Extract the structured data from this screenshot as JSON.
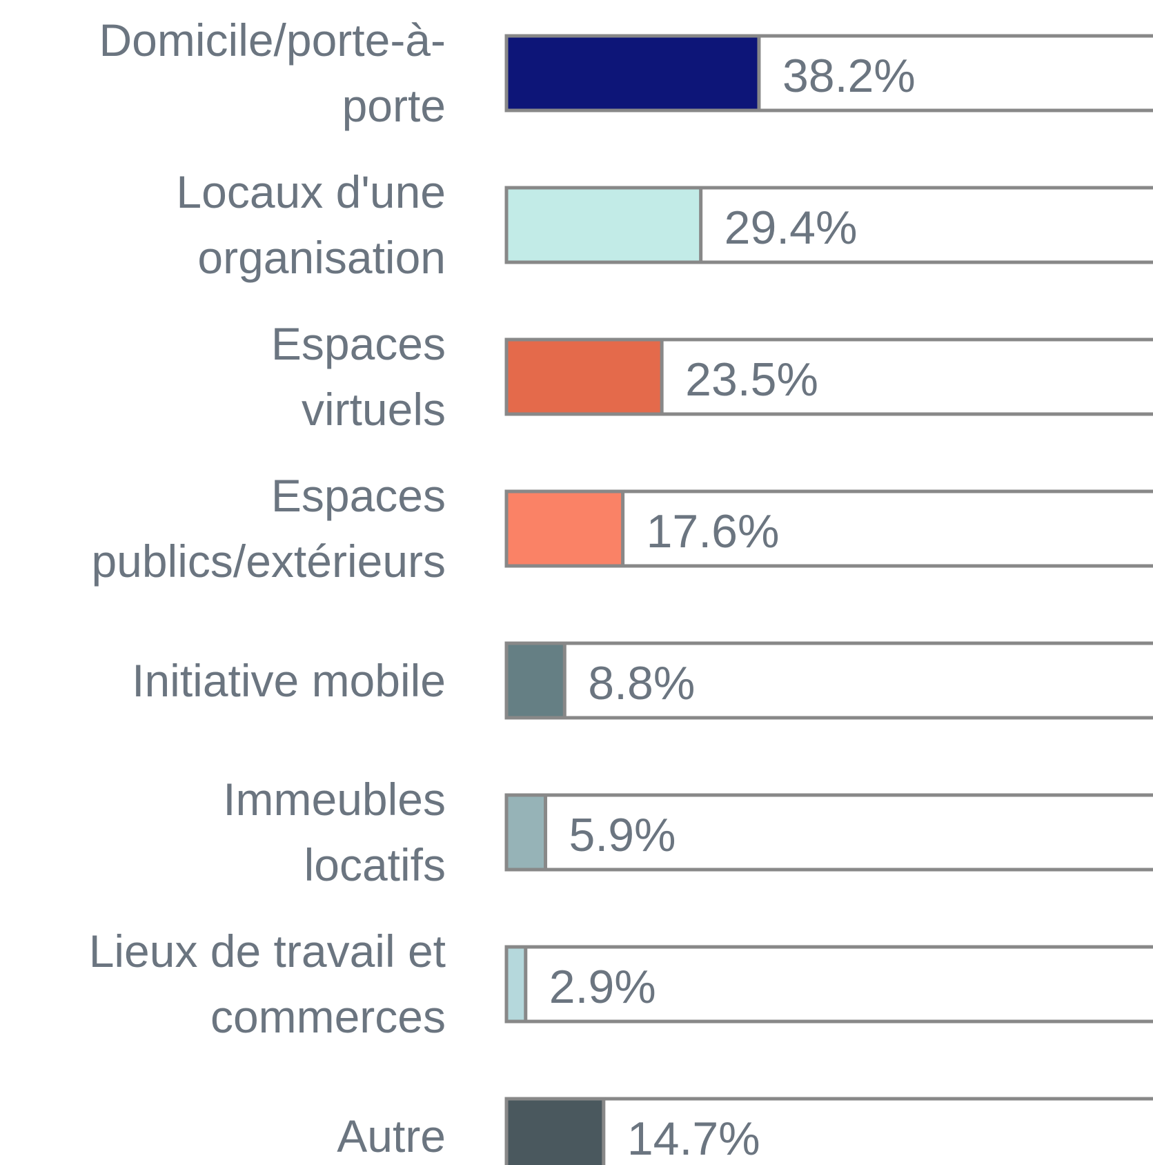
{
  "chart_data": {
    "type": "bar",
    "orientation": "horizontal",
    "categories": [
      "Domicile/porte-à-porte",
      "Locaux d'une organisation",
      "Espaces virtuels",
      "Espaces publics/extérieurs",
      "Initiative mobile",
      "Immeubles locatifs",
      "Lieux de travail et commerces",
      "Autre"
    ],
    "values": [
      38.2,
      29.4,
      23.5,
      17.6,
      8.8,
      5.9,
      2.9,
      14.7
    ],
    "value_labels": [
      "38.2%",
      "29.4%",
      "23.5%",
      "17.6%",
      "8.8%",
      "5.9%",
      "2.9%",
      "14.7%"
    ],
    "colors": [
      "#0d1578",
      "#c2ebe7",
      "#e46a4b",
      "#fa8266",
      "#657f84",
      "#96b3b7",
      "#b5d8dc",
      "#4a585e"
    ],
    "xlim": [
      0,
      100
    ]
  }
}
